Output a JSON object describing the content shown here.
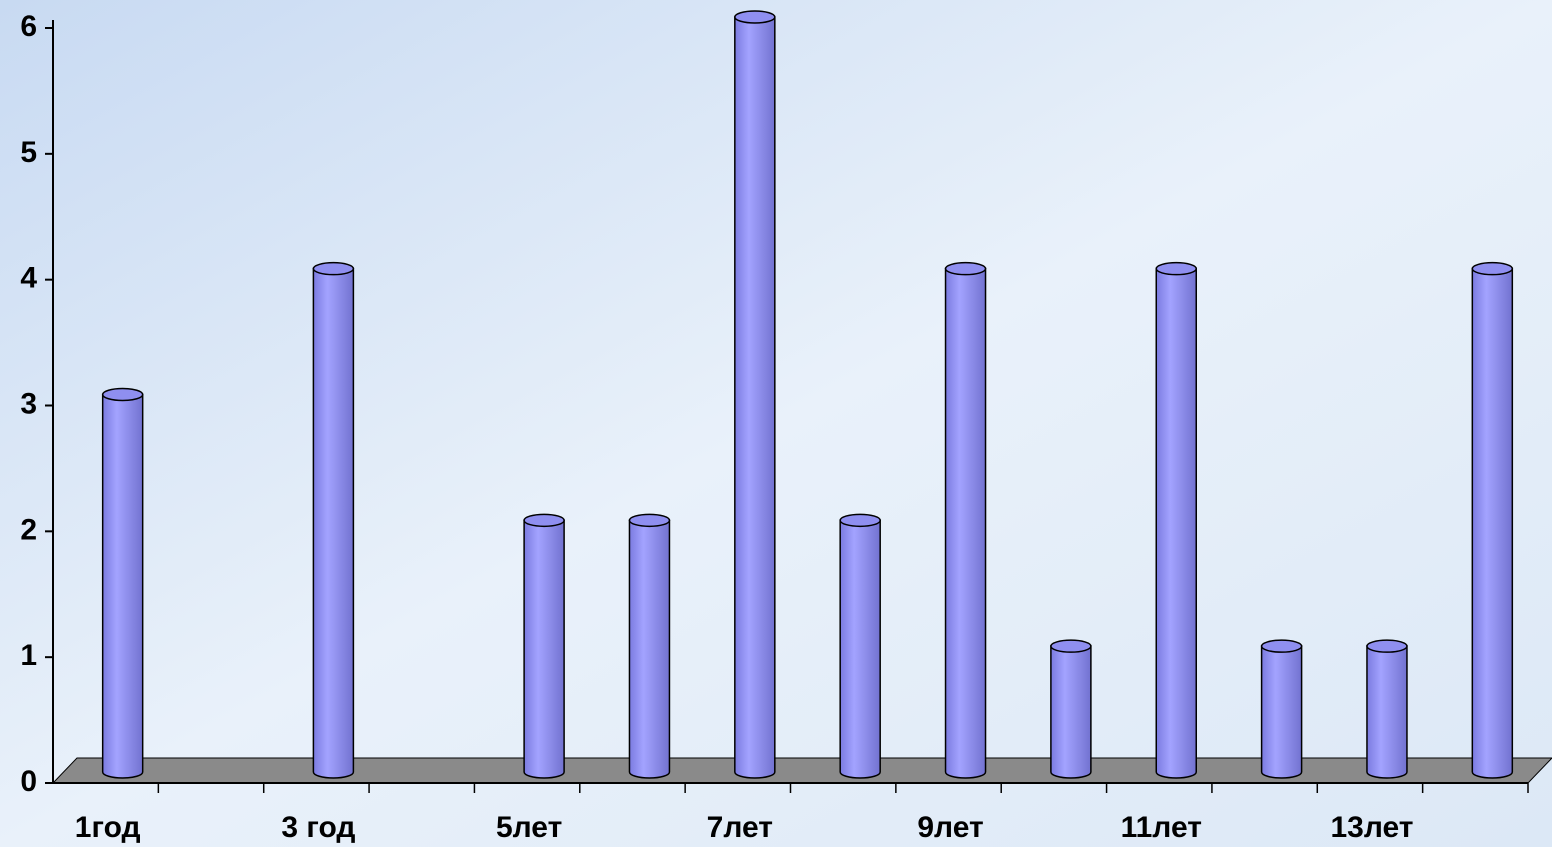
{
  "chart_data": {
    "type": "bar",
    "style": "3d-cylinder",
    "categories": [
      "1год",
      null,
      "3 год",
      null,
      "5лет",
      null,
      "7лет",
      null,
      "9лет",
      null,
      "11лет",
      null,
      "13лет",
      null
    ],
    "values": [
      3,
      0,
      4,
      0,
      2,
      2,
      6,
      2,
      4,
      1,
      4,
      1,
      1,
      4
    ],
    "color": "#8f8ff0",
    "ylim": [
      0,
      6
    ],
    "yticks": [
      0,
      1,
      2,
      3,
      4,
      5,
      6
    ],
    "grid": false
  }
}
